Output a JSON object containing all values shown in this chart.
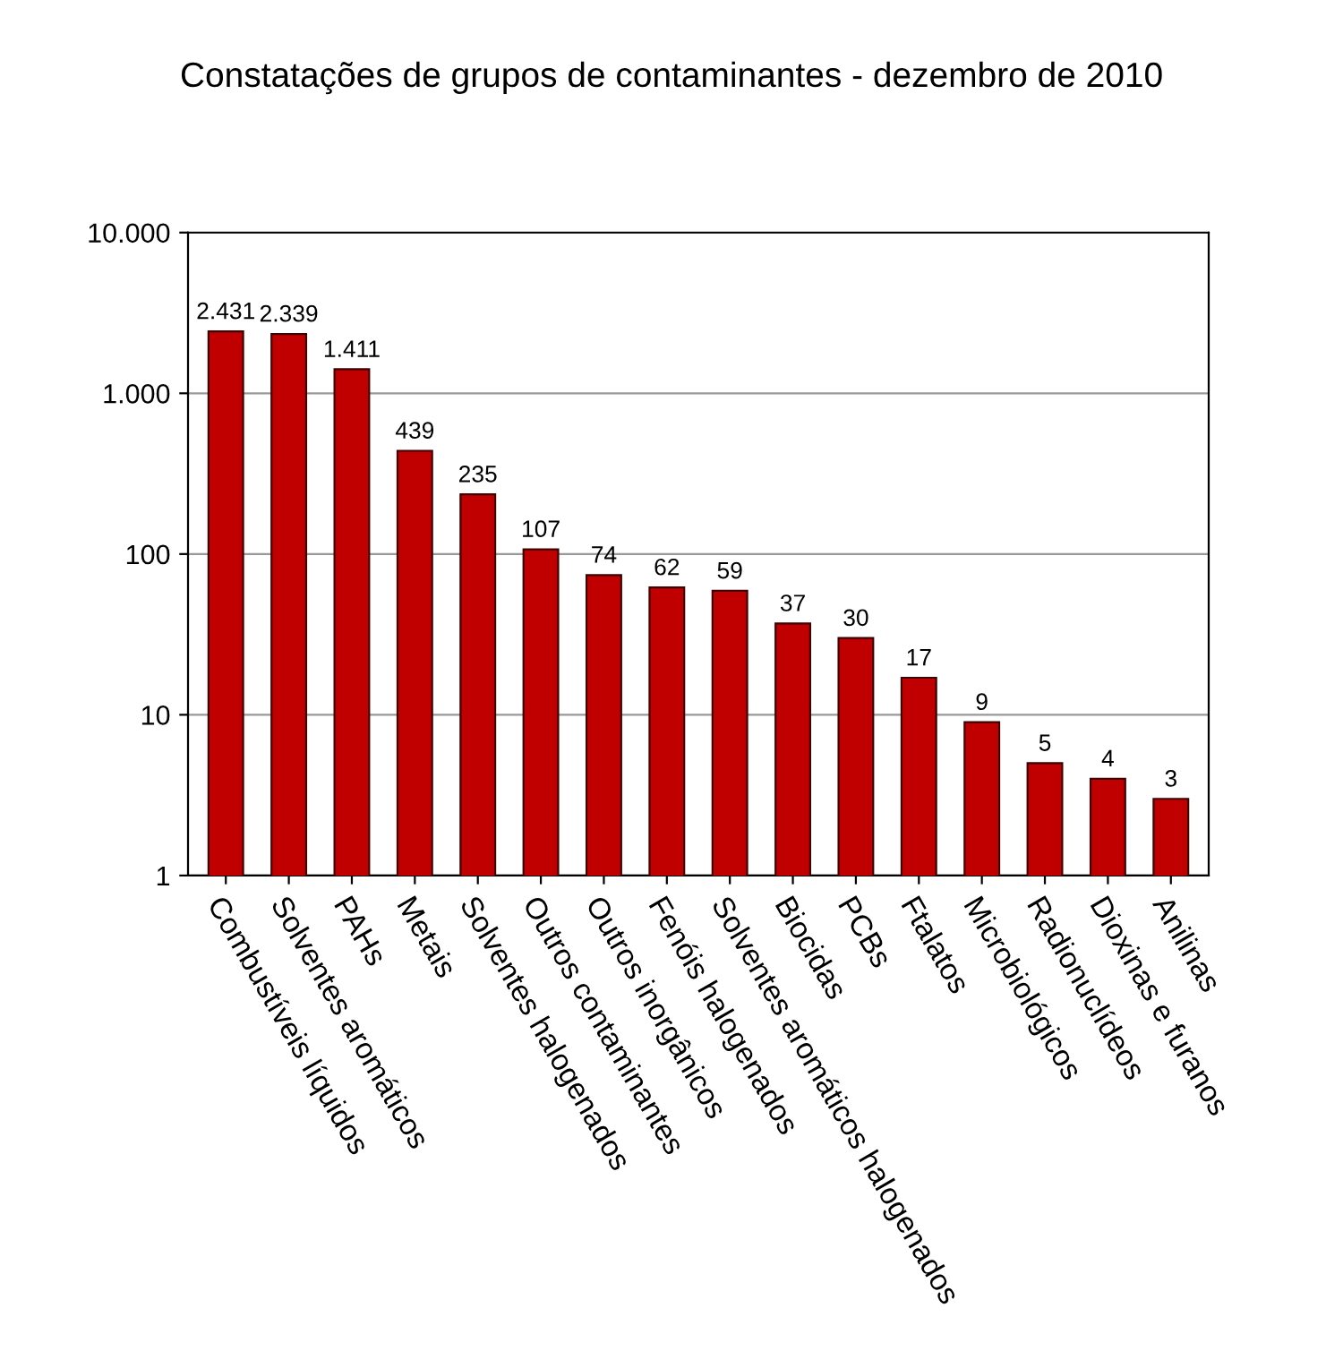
{
  "chart_data": {
    "type": "bar",
    "title": "Constatações de grupos de contaminantes - dezembro de 2010",
    "categories": [
      "Combustíveis líquidos",
      "Solventes aromáticos",
      "PAHs",
      "Metais",
      "Solventes halogenados",
      "Outros contaminantes",
      "Outros inorgânicos",
      "Fenóis halogenados",
      "Solventes aromáticos halogenados",
      "Biocidas",
      "PCBs",
      "Ftalatos",
      "Microbiológicos",
      "Radionuclídeos",
      "Dioxinas e furanos",
      "Anilinas"
    ],
    "values": [
      2431,
      2339,
      1411,
      439,
      235,
      107,
      74,
      62,
      59,
      37,
      30,
      17,
      9,
      5,
      4,
      3
    ],
    "value_labels": [
      "2.431",
      "2.339",
      "1.411",
      "439",
      "235",
      "107",
      "74",
      "62",
      "59",
      "37",
      "30",
      "17",
      "9",
      "5",
      "4",
      "3"
    ],
    "color": "#c00000",
    "log": true,
    "ylim": [
      1,
      10000
    ],
    "yticks": [
      1,
      10,
      100,
      {
        "value": 1000,
        "label": "1.000"
      },
      {
        "value": 10000,
        "label": "10.000"
      }
    ],
    "grid": "y",
    "legend": false
  }
}
